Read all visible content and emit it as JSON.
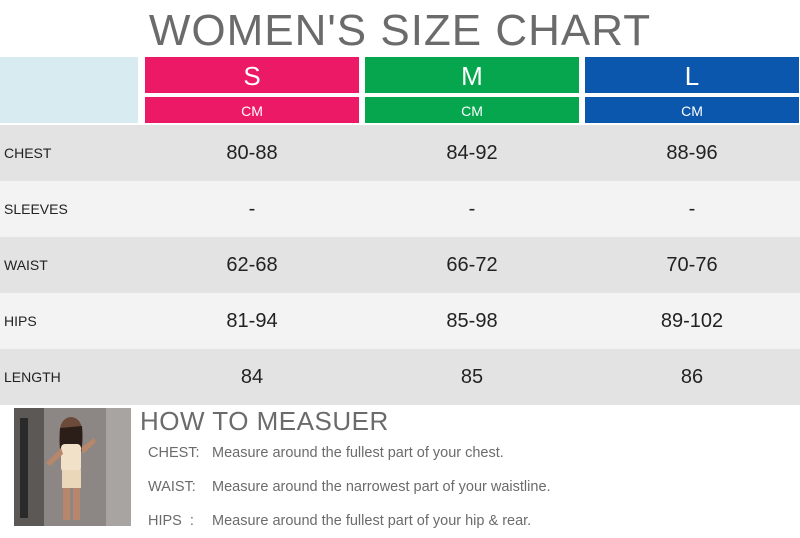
{
  "title": "WOMEN'S SIZE CHART",
  "sizes": [
    {
      "label": "S",
      "unit": "CM",
      "color": "#ec1a66"
    },
    {
      "label": "M",
      "unit": "CM",
      "color": "#05a64d"
    },
    {
      "label": "L",
      "unit": "CM",
      "color": "#0a57ad"
    }
  ],
  "rows": [
    {
      "label": "CHEST",
      "values": [
        "80-88",
        "84-92",
        "88-96"
      ]
    },
    {
      "label": "SLEEVES",
      "values": [
        "-",
        "-",
        "-"
      ]
    },
    {
      "label": "WAIST",
      "values": [
        "62-68",
        "66-72",
        "70-76"
      ]
    },
    {
      "label": "HIPS",
      "values": [
        "81-94",
        "85-98",
        "89-102"
      ]
    },
    {
      "label": "LENGTH",
      "values": [
        "84",
        "85",
        "86"
      ]
    }
  ],
  "how_to": {
    "title": "HOW TO MEASUER",
    "items": [
      {
        "label": "CHEST:",
        "text": "Measure around the fullest part of your chest."
      },
      {
        "label": "WAIST:",
        "text": "Measure around the narrowest part of your waistline."
      },
      {
        "label": "HIPS  :",
        "text": "Measure around the fullest part of your hip & rear."
      }
    ]
  }
}
